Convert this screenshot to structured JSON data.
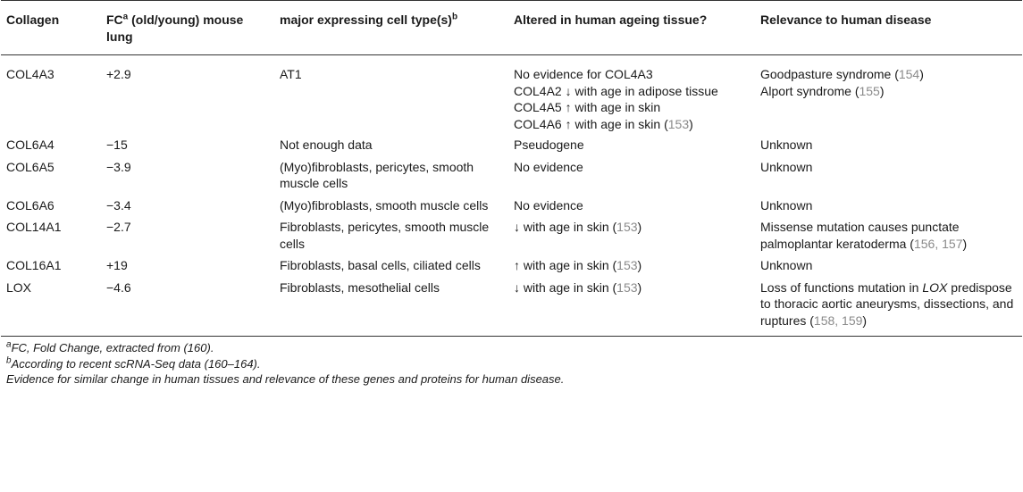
{
  "table": {
    "headers": {
      "collagen": "Collagen",
      "fc": "FC",
      "fc_sup": "a",
      "fc_rest": " (old/young) mouse lung",
      "cell": "major expressing cell type(s)",
      "cell_sup": "b",
      "altered": "Altered in human ageing tissue?",
      "relevance": "Relevance to human disease"
    },
    "rows": [
      {
        "gene": "COL4A3",
        "fc": "+2.9",
        "cell": "AT1",
        "altered": [
          {
            "text": "No evidence for COL4A3",
            "ref": ""
          },
          {
            "text": "COL4A2 ↓ with age in adipose tissue",
            "ref": ""
          },
          {
            "text": "COL4A5 ↑ with age in skin",
            "ref": ""
          },
          {
            "text": "COL4A6 ↑ with age in skin (",
            "ref": "153",
            "close": ")"
          }
        ],
        "relevance": [
          {
            "text": "Goodpasture syndrome (",
            "ref": "154",
            "close": ")"
          },
          {
            "text": "Alport syndrome (",
            "ref": "155",
            "close": ")"
          }
        ]
      },
      {
        "gene": "COL6A4",
        "fc": "−15",
        "cell": "Not enough data",
        "altered": [
          {
            "text": "Pseudogene",
            "ref": ""
          }
        ],
        "relevance": [
          {
            "text": "Unknown",
            "ref": ""
          }
        ]
      },
      {
        "gene": "COL6A5",
        "fc": "−3.9",
        "cell": "(Myo)fibroblasts, pericytes, smooth muscle cells",
        "altered": [
          {
            "text": "No evidence",
            "ref": ""
          }
        ],
        "relevance": [
          {
            "text": "Unknown",
            "ref": ""
          }
        ]
      },
      {
        "gene": "COL6A6",
        "fc": "−3.4",
        "cell": "(Myo)fibroblasts, smooth muscle cells",
        "altered": [
          {
            "text": "No evidence",
            "ref": ""
          }
        ],
        "relevance": [
          {
            "text": "Unknown",
            "ref": ""
          }
        ]
      },
      {
        "gene": "COL14A1",
        "fc": "−2.7",
        "cell": "Fibroblasts, pericytes, smooth muscle cells",
        "altered": [
          {
            "text": "↓ with age in skin (",
            "ref": "153",
            "close": ")"
          }
        ],
        "relevance": [
          {
            "text": "Missense mutation causes punctate palmoplantar keratoderma (",
            "ref": "156, 157",
            "close": ")"
          }
        ]
      },
      {
        "gene": "COL16A1",
        "fc": "+19",
        "cell": "Fibroblasts, basal cells, ciliated cells",
        "altered": [
          {
            "text": "↑ with age in skin (",
            "ref": "153",
            "close": ")"
          }
        ],
        "relevance": [
          {
            "text": "Unknown",
            "ref": ""
          }
        ]
      },
      {
        "gene": "LOX",
        "fc": "−4.6",
        "cell": "Fibroblasts, mesothelial cells",
        "altered": [
          {
            "text": "↓ with age in skin (",
            "ref": "153",
            "close": ")"
          }
        ],
        "relevance_lox": {
          "pre": "Loss of functions mutation in ",
          "italic": "LOX",
          "post": " predispose to thoracic aortic aneurysms, dissections, and ruptures (",
          "ref": "158, 159",
          "close": ")"
        }
      }
    ]
  },
  "notes": {
    "a_sup": "a",
    "a_text": "FC, Fold Change, extracted from (160).",
    "b_sup": "b",
    "b_text": "According to recent scRNA-Seq data (160–164).",
    "caption": "Evidence for similar change in human tissues and relevance of these genes and proteins for human disease."
  }
}
